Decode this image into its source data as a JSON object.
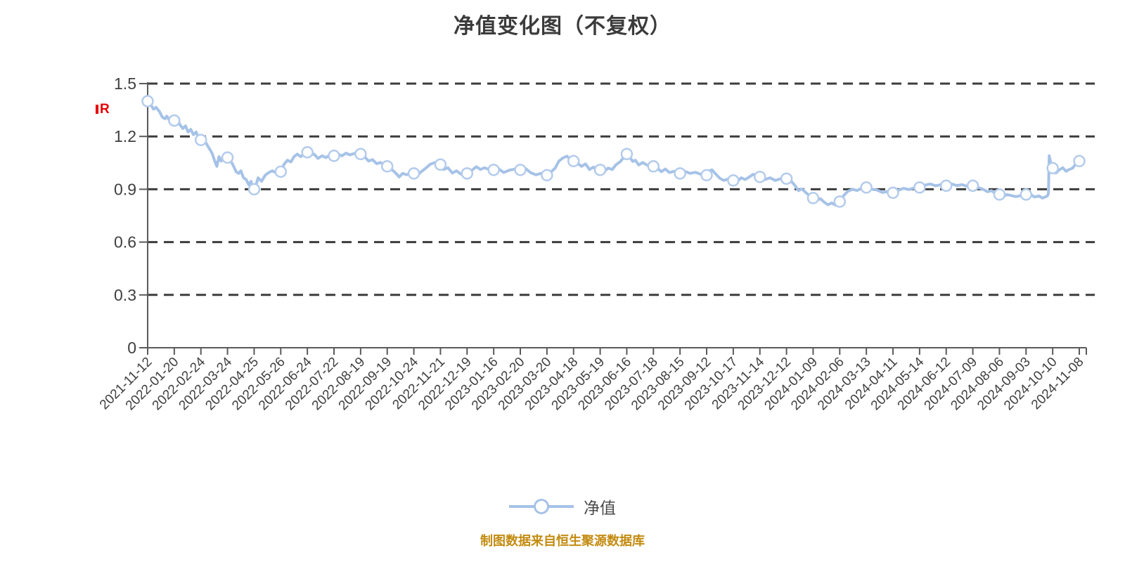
{
  "title": "净值变化图（不复权）",
  "watermark": {
    "text": "R",
    "color": "#e60000"
  },
  "legend": {
    "label": "净值"
  },
  "footer": {
    "text": "制图数据来自恒生聚源数据库",
    "color": "#c38b10"
  },
  "colors": {
    "line": "#a6c2e7",
    "marker_fill": "#ffffff",
    "marker_stroke": "#b3cbec",
    "grid": "#3c3c3c",
    "axis": "#5a5a5a",
    "text": "#3f3f3f"
  },
  "chart_data": {
    "type": "line",
    "title": "净值变化图（不复权）",
    "xlabel": "",
    "ylabel": "",
    "ylim": [
      0,
      1.5
    ],
    "yticks": [
      0,
      0.3,
      0.6,
      0.9,
      1.2,
      1.5
    ],
    "grid": "horizontal-dashed",
    "legend_position": "bottom",
    "categories": [
      "2021-11-12",
      "2022-01-20",
      "2022-02-24",
      "2022-03-24",
      "2022-04-25",
      "2022-05-26",
      "2022-06-24",
      "2022-07-22",
      "2022-08-19",
      "2022-09-19",
      "2022-10-24",
      "2022-11-21",
      "2022-12-19",
      "2023-01-16",
      "2023-02-20",
      "2023-03-20",
      "2023-04-18",
      "2023-05-19",
      "2023-06-16",
      "2023-07-18",
      "2023-08-15",
      "2023-09-12",
      "2023-10-17",
      "2023-11-14",
      "2023-12-12",
      "2024-01-09",
      "2024-02-06",
      "2024-03-13",
      "2024-04-11",
      "2024-05-14",
      "2024-06-12",
      "2024-07-09",
      "2024-08-06",
      "2024-09-03",
      "2024-10-10",
      "2024-11-08"
    ],
    "series": [
      {
        "name": "净值",
        "values": [
          1.4,
          1.29,
          1.18,
          1.08,
          0.9,
          1.0,
          1.11,
          1.09,
          1.1,
          1.03,
          0.99,
          1.04,
          0.99,
          1.01,
          1.01,
          0.98,
          1.06,
          1.01,
          1.1,
          1.03,
          0.99,
          0.98,
          0.95,
          0.97,
          0.96,
          0.85,
          0.83,
          0.91,
          0.88,
          0.91,
          0.92,
          0.92,
          0.87,
          0.87,
          1.02,
          1.06
        ]
      }
    ],
    "dense_line": [
      [
        0,
        1.4
      ],
      [
        0.12,
        1.38
      ],
      [
        0.22,
        1.355
      ],
      [
        0.32,
        1.365
      ],
      [
        0.45,
        1.34
      ],
      [
        0.55,
        1.31
      ],
      [
        0.65,
        1.3
      ],
      [
        0.72,
        1.315
      ],
      [
        0.8,
        1.295
      ],
      [
        0.9,
        1.3
      ],
      [
        1,
        1.29
      ],
      [
        1.1,
        1.3
      ],
      [
        1.22,
        1.265
      ],
      [
        1.32,
        1.245
      ],
      [
        1.42,
        1.26
      ],
      [
        1.52,
        1.225
      ],
      [
        1.62,
        1.24
      ],
      [
        1.72,
        1.21
      ],
      [
        1.82,
        1.225
      ],
      [
        1.92,
        1.19
      ],
      [
        2,
        1.18
      ],
      [
        2.08,
        1.195
      ],
      [
        2.2,
        1.16
      ],
      [
        2.32,
        1.13
      ],
      [
        2.42,
        1.105
      ],
      [
        2.52,
        1.06
      ],
      [
        2.6,
        1.03
      ],
      [
        2.68,
        1.085
      ],
      [
        2.76,
        1.06
      ],
      [
        2.86,
        1.095
      ],
      [
        3,
        1.08
      ],
      [
        3.1,
        1.065
      ],
      [
        3.2,
        1.04
      ],
      [
        3.32,
        1.0
      ],
      [
        3.42,
        0.99
      ],
      [
        3.5,
        1.005
      ],
      [
        3.6,
        0.965
      ],
      [
        3.7,
        0.955
      ],
      [
        3.8,
        0.925
      ],
      [
        3.88,
        0.945
      ],
      [
        3.95,
        0.91
      ],
      [
        4,
        0.9
      ],
      [
        4.08,
        0.93
      ],
      [
        4.15,
        0.965
      ],
      [
        4.28,
        0.945
      ],
      [
        4.42,
        0.98
      ],
      [
        4.55,
        0.995
      ],
      [
        4.68,
        1.005
      ],
      [
        4.8,
        0.995
      ],
      [
        4.9,
        1.005
      ],
      [
        5,
        1.0
      ],
      [
        5.12,
        1.04
      ],
      [
        5.25,
        1.065
      ],
      [
        5.38,
        1.055
      ],
      [
        5.5,
        1.085
      ],
      [
        5.62,
        1.1
      ],
      [
        5.75,
        1.085
      ],
      [
        5.88,
        1.1
      ],
      [
        6,
        1.11
      ],
      [
        6.12,
        1.095
      ],
      [
        6.25,
        1.1
      ],
      [
        6.4,
        1.075
      ],
      [
        6.55,
        1.09
      ],
      [
        6.7,
        1.08
      ],
      [
        6.85,
        1.095
      ],
      [
        7,
        1.09
      ],
      [
        7.15,
        1.1
      ],
      [
        7.3,
        1.09
      ],
      [
        7.45,
        1.105
      ],
      [
        7.6,
        1.095
      ],
      [
        7.8,
        1.105
      ],
      [
        8,
        1.1
      ],
      [
        8.15,
        1.085
      ],
      [
        8.3,
        1.06
      ],
      [
        8.45,
        1.068
      ],
      [
        8.6,
        1.045
      ],
      [
        8.75,
        1.052
      ],
      [
        8.9,
        1.035
      ],
      [
        9,
        1.03
      ],
      [
        9.15,
        1.015
      ],
      [
        9.3,
        0.995
      ],
      [
        9.45,
        0.97
      ],
      [
        9.58,
        0.99
      ],
      [
        9.72,
        0.982
      ],
      [
        9.88,
        0.992
      ],
      [
        10,
        0.99
      ],
      [
        10.1,
        0.975
      ],
      [
        10.28,
        1.0
      ],
      [
        10.45,
        1.02
      ],
      [
        10.62,
        1.042
      ],
      [
        10.8,
        1.052
      ],
      [
        11,
        1.04
      ],
      [
        11.12,
        1.012
      ],
      [
        11.28,
        1.022
      ],
      [
        11.45,
        0.992
      ],
      [
        11.6,
        1.005
      ],
      [
        11.78,
        0.985
      ],
      [
        12,
        0.99
      ],
      [
        12.18,
        1.008
      ],
      [
        12.35,
        1.028
      ],
      [
        12.5,
        1.012
      ],
      [
        12.65,
        1.022
      ],
      [
        12.82,
        1.012
      ],
      [
        13,
        1.01
      ],
      [
        13.18,
        1.016
      ],
      [
        13.38,
        0.995
      ],
      [
        13.58,
        1.008
      ],
      [
        13.78,
        1.014
      ],
      [
        14,
        1.01
      ],
      [
        14.18,
        1.02
      ],
      [
        14.38,
        0.995
      ],
      [
        14.58,
        0.982
      ],
      [
        14.78,
        0.99
      ],
      [
        15,
        0.98
      ],
      [
        15.15,
        0.998
      ],
      [
        15.3,
        1.018
      ],
      [
        15.45,
        1.06
      ],
      [
        15.6,
        1.078
      ],
      [
        15.75,
        1.088
      ],
      [
        15.88,
        1.07
      ],
      [
        16,
        1.06
      ],
      [
        16.15,
        1.048
      ],
      [
        16.3,
        1.03
      ],
      [
        16.45,
        1.044
      ],
      [
        16.6,
        1.012
      ],
      [
        16.75,
        1.026
      ],
      [
        16.9,
        1.002
      ],
      [
        17,
        1.01
      ],
      [
        17.15,
        1.0
      ],
      [
        17.3,
        1.02
      ],
      [
        17.45,
        1.012
      ],
      [
        17.6,
        1.04
      ],
      [
        17.75,
        1.056
      ],
      [
        17.88,
        1.08
      ],
      [
        17.96,
        1.095
      ],
      [
        18,
        1.1
      ],
      [
        18.05,
        1.125
      ],
      [
        18.12,
        1.08
      ],
      [
        18.22,
        1.058
      ],
      [
        18.32,
        1.065
      ],
      [
        18.45,
        1.038
      ],
      [
        18.6,
        1.052
      ],
      [
        18.75,
        1.038
      ],
      [
        18.9,
        1.032
      ],
      [
        19,
        1.03
      ],
      [
        19.15,
        1.018
      ],
      [
        19.3,
        1.0
      ],
      [
        19.45,
        1.015
      ],
      [
        19.6,
        0.995
      ],
      [
        19.78,
        1.002
      ],
      [
        20,
        0.99
      ],
      [
        20.18,
        1.002
      ],
      [
        20.38,
        0.99
      ],
      [
        20.58,
        0.996
      ],
      [
        20.78,
        0.985
      ],
      [
        21,
        0.98
      ],
      [
        21.1,
        1.005
      ],
      [
        21.2,
        1.01
      ],
      [
        21.35,
        0.985
      ],
      [
        21.5,
        0.962
      ],
      [
        21.65,
        0.95
      ],
      [
        21.78,
        0.957
      ],
      [
        21.9,
        0.945
      ],
      [
        22,
        0.95
      ],
      [
        22.15,
        0.944
      ],
      [
        22.3,
        0.965
      ],
      [
        22.45,
        0.955
      ],
      [
        22.6,
        0.97
      ],
      [
        22.75,
        0.985
      ],
      [
        22.9,
        0.975
      ],
      [
        23,
        0.97
      ],
      [
        23.18,
        0.955
      ],
      [
        23.38,
        0.965
      ],
      [
        23.58,
        0.95
      ],
      [
        23.78,
        0.96
      ],
      [
        24,
        0.96
      ],
      [
        24.15,
        0.95
      ],
      [
        24.3,
        0.925
      ],
      [
        24.45,
        0.892
      ],
      [
        24.58,
        0.902
      ],
      [
        24.72,
        0.882
      ],
      [
        24.88,
        0.862
      ],
      [
        25,
        0.85
      ],
      [
        25.12,
        0.836
      ],
      [
        25.28,
        0.846
      ],
      [
        25.42,
        0.826
      ],
      [
        25.56,
        0.812
      ],
      [
        25.7,
        0.822
      ],
      [
        25.84,
        0.81
      ],
      [
        26,
        0.83
      ],
      [
        26.15,
        0.864
      ],
      [
        26.3,
        0.888
      ],
      [
        26.48,
        0.9
      ],
      [
        26.65,
        0.893
      ],
      [
        26.82,
        0.905
      ],
      [
        27,
        0.91
      ],
      [
        27.2,
        0.9
      ],
      [
        27.4,
        0.896
      ],
      [
        27.6,
        0.882
      ],
      [
        27.8,
        0.887
      ],
      [
        28,
        0.88
      ],
      [
        28.2,
        0.894
      ],
      [
        28.4,
        0.905
      ],
      [
        28.6,
        0.898
      ],
      [
        28.8,
        0.908
      ],
      [
        29,
        0.91
      ],
      [
        29.2,
        0.924
      ],
      [
        29.4,
        0.93
      ],
      [
        29.6,
        0.92
      ],
      [
        29.8,
        0.926
      ],
      [
        30,
        0.92
      ],
      [
        30.2,
        0.93
      ],
      [
        30.4,
        0.921
      ],
      [
        30.6,
        0.926
      ],
      [
        30.8,
        0.916
      ],
      [
        31,
        0.92
      ],
      [
        31.2,
        0.91
      ],
      [
        31.38,
        0.9
      ],
      [
        31.55,
        0.886
      ],
      [
        31.7,
        0.892
      ],
      [
        31.85,
        0.876
      ],
      [
        32,
        0.87
      ],
      [
        32.12,
        0.856
      ],
      [
        32.28,
        0.87
      ],
      [
        32.45,
        0.864
      ],
      [
        32.62,
        0.858
      ],
      [
        32.8,
        0.864
      ],
      [
        33,
        0.87
      ],
      [
        33.15,
        0.872
      ],
      [
        33.32,
        0.856
      ],
      [
        33.48,
        0.862
      ],
      [
        33.62,
        0.85
      ],
      [
        33.72,
        0.856
      ],
      [
        33.8,
        0.862
      ],
      [
        33.84,
        0.875
      ],
      [
        33.87,
        1.09
      ],
      [
        33.93,
        1.05
      ],
      [
        34,
        1.02
      ],
      [
        34.12,
        0.992
      ],
      [
        34.25,
        1.01
      ],
      [
        34.38,
        1.022
      ],
      [
        34.5,
        1.002
      ],
      [
        34.62,
        1.012
      ],
      [
        34.75,
        1.02
      ],
      [
        34.88,
        1.046
      ],
      [
        35,
        1.06
      ]
    ]
  }
}
